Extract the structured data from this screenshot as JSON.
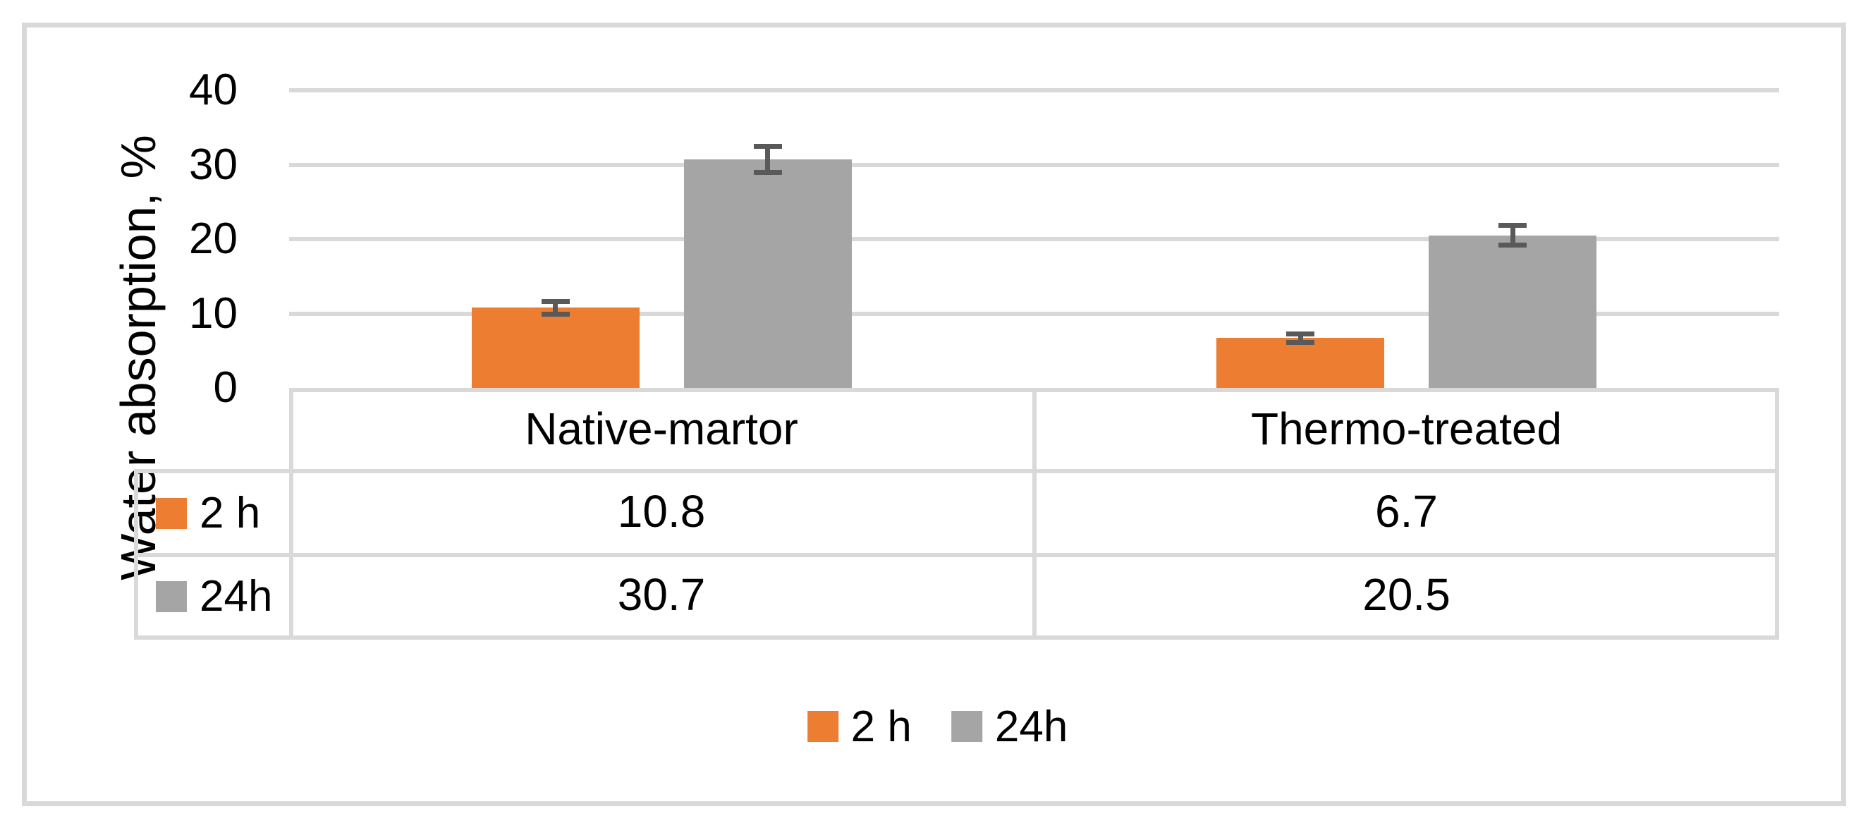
{
  "figure": {
    "background": "#ffffff",
    "frame_border_color": "#D9D9D9"
  },
  "chart_data": {
    "type": "bar",
    "title": "",
    "xlabel": "",
    "ylabel": "Water absorption, %",
    "ylim": [
      0,
      40
    ],
    "yticks": [
      0,
      10,
      20,
      30,
      40
    ],
    "grid": true,
    "gridline_color": "#D9D9D9",
    "error_bar_color": "#595959",
    "legend_position": "bottom",
    "data_table_shown": true,
    "categories": [
      "Native-martor",
      "Thermo-treated"
    ],
    "series": [
      {
        "name": "2 h",
        "color": "#ED7D31",
        "values": [
          10.8,
          6.7
        ],
        "errors": [
          0.9,
          0.6
        ]
      },
      {
        "name": "24h",
        "color": "#A5A5A5",
        "values": [
          30.7,
          20.5
        ],
        "errors": [
          1.8,
          1.4
        ]
      }
    ]
  }
}
